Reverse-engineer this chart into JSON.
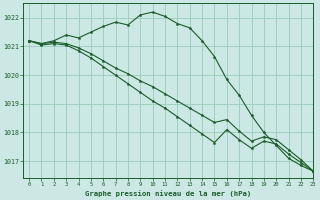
{
  "background_color": "#cce8e4",
  "grid_color": "#99ccbb",
  "line_color": "#1a5c2a",
  "title": "Graphe pression niveau de la mer (hPa)",
  "xlim": [
    -0.5,
    23
  ],
  "ylim": [
    1016.4,
    1022.5
  ],
  "yticks": [
    1017,
    1018,
    1019,
    1020,
    1021,
    1022
  ],
  "xticks": [
    0,
    1,
    2,
    3,
    4,
    5,
    6,
    7,
    8,
    9,
    10,
    11,
    12,
    13,
    14,
    15,
    16,
    17,
    18,
    19,
    20,
    21,
    22,
    23
  ],
  "xtick_labels": [
    "0",
    "1",
    "2",
    "3",
    "4",
    "5",
    "6",
    "7",
    "8",
    "9",
    "10",
    "11",
    "12",
    "13",
    "14",
    "15",
    "16",
    "17",
    "18",
    "19",
    "20",
    "21",
    "22",
    "23"
  ],
  "series": [
    {
      "x": [
        0,
        1,
        2,
        3,
        4,
        5,
        6,
        7,
        8,
        9,
        10,
        11,
        12,
        13,
        14,
        15,
        16,
        17,
        18,
        19,
        20,
        21,
        22,
        23
      ],
      "y": [
        1021.2,
        1021.1,
        1021.2,
        1021.4,
        1021.3,
        1021.5,
        1021.7,
        1021.85,
        1021.75,
        1022.1,
        1022.2,
        1022.05,
        1021.8,
        1021.65,
        1021.2,
        1020.65,
        1019.85,
        1019.3,
        1018.6,
        1018.0,
        1017.55,
        1017.1,
        1016.85,
        1016.65
      ]
    },
    {
      "x": [
        0,
        1,
        2,
        3,
        4,
        5,
        6,
        7,
        8,
        9,
        10,
        11,
        12,
        13,
        14,
        15,
        16,
        17,
        18,
        19,
        20,
        21,
        22,
        23
      ],
      "y": [
        1021.2,
        1021.1,
        1021.15,
        1021.1,
        1020.95,
        1020.75,
        1020.5,
        1020.25,
        1020.05,
        1019.8,
        1019.6,
        1019.35,
        1019.1,
        1018.85,
        1018.6,
        1018.35,
        1018.45,
        1018.05,
        1017.7,
        1017.85,
        1017.75,
        1017.4,
        1017.05,
        1016.65
      ]
    },
    {
      "x": [
        0,
        1,
        2,
        3,
        4,
        5,
        6,
        7,
        8,
        9,
        10,
        11,
        12,
        13,
        14,
        15,
        16,
        17,
        18,
        19,
        20,
        21,
        22,
        23
      ],
      "y": [
        1021.2,
        1021.05,
        1021.1,
        1021.05,
        1020.85,
        1020.6,
        1020.3,
        1020.0,
        1019.7,
        1019.4,
        1019.1,
        1018.85,
        1018.55,
        1018.25,
        1017.95,
        1017.65,
        1018.1,
        1017.75,
        1017.45,
        1017.7,
        1017.6,
        1017.25,
        1016.95,
        1016.65
      ]
    }
  ]
}
